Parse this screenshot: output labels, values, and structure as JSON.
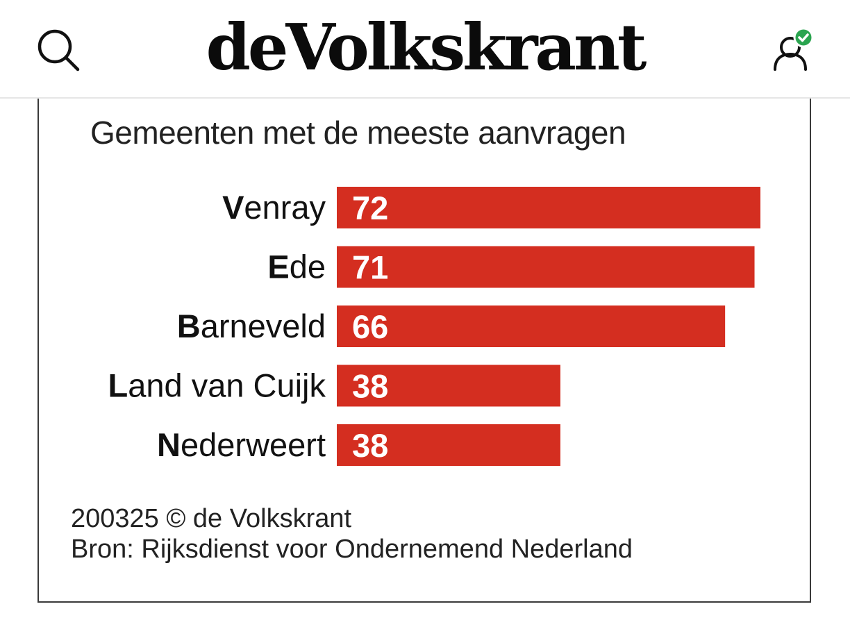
{
  "header": {
    "logo_text": "deVolkskrant",
    "search_icon": "search-icon",
    "account_icon": "user-verified-icon",
    "verified_color": "#2aa44f"
  },
  "chart_data": {
    "type": "bar",
    "orientation": "horizontal",
    "title": "Gemeenten met de meeste aanvragen",
    "categories": [
      "Venray",
      "Ede",
      "Barneveld",
      "Land van Cuijk",
      "Nederweert"
    ],
    "values": [
      72,
      71,
      66,
      38,
      38
    ],
    "bar_color": "#d42e20",
    "value_labels": true,
    "grid": false,
    "legend": "none",
    "xlim": [
      0,
      72
    ]
  },
  "footer": {
    "credit": "200325 © de Volkskrant",
    "source": "Bron: Rijksdienst voor Ondernemend Nederland"
  }
}
